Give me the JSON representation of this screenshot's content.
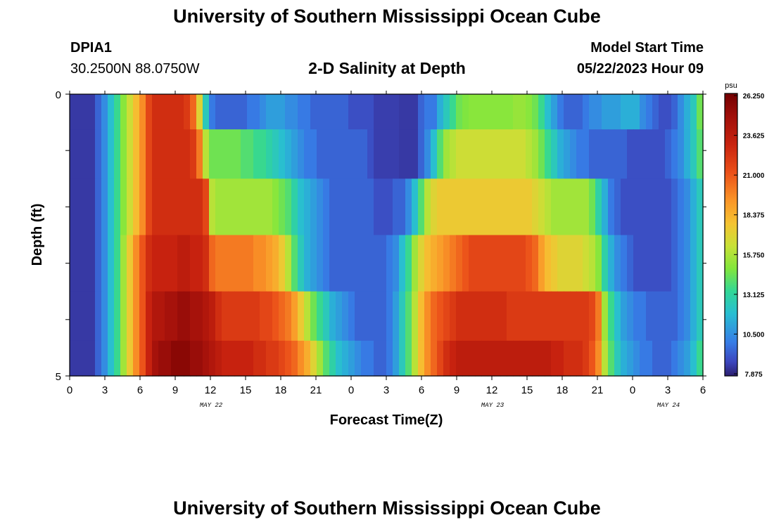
{
  "page_title": "University of Southern Mississippi Ocean Cube",
  "footer_title": "University of Southern Mississippi Ocean Cube",
  "station": {
    "id": "DPIA1",
    "coords": "30.2500N  88.0750W"
  },
  "plot_title": "2-D Salinity at Depth",
  "model": {
    "label": "Model Start Time",
    "value": "05/22/2023 Hour 09"
  },
  "chart_data": {
    "type": "heatmap",
    "title": "2-D Salinity at Depth",
    "xlabel": "Forecast Time(Z)",
    "ylabel": "Depth (ft)",
    "x_hours_from_start": [
      0,
      54
    ],
    "x_tick_labels": [
      "0",
      "3",
      "6",
      "9",
      "12",
      "15",
      "18",
      "21",
      "0",
      "3",
      "6",
      "9",
      "12",
      "15",
      "18",
      "21",
      "0",
      "3",
      "6"
    ],
    "date_labels": [
      {
        "text": "MAY 22",
        "hour": 12
      },
      {
        "text": "MAY 23",
        "hour": 36
      },
      {
        "text": "MAY 24",
        "hour": 51
      }
    ],
    "y_tick_labels": [
      "0",
      "5"
    ],
    "ylim": [
      0,
      5
    ],
    "depth_layers": [
      0.25,
      1.0,
      2.0,
      3.0,
      4.0,
      4.75
    ],
    "colorbar": {
      "unit": "psu",
      "min": 7.875,
      "max": 26.25,
      "tick_labels": [
        "26.250",
        "23.625",
        "21.000",
        "18.375",
        "15.750",
        "13.125",
        "10.500",
        "7.875"
      ]
    },
    "series": [
      {
        "name": "0.25 ft",
        "values": [
          8.5,
          8.5,
          8.5,
          8.5,
          9.5,
          10.5,
          12,
          13.5,
          15,
          16.5,
          18,
          19.5,
          21.5,
          22.5,
          22.5,
          22.5,
          22.5,
          22.5,
          22,
          20.5,
          17,
          12.5,
          10,
          9.5,
          9.5,
          9.5,
          9.5,
          9.5,
          10,
          10,
          10.5,
          11,
          11,
          11,
          10.5,
          10.5,
          10,
          10,
          9.5,
          9.5,
          9.5,
          9.5,
          9.5,
          9.5,
          9,
          9,
          9,
          9,
          8.6,
          8.6,
          8.6,
          8.6,
          8.5,
          8.5,
          8.5,
          9.5,
          10,
          10,
          11.5,
          12.5,
          13.5,
          14.5,
          14.8,
          15,
          15,
          15,
          15,
          15,
          15,
          15,
          15.3,
          15.3,
          15,
          14.5,
          13.5,
          12,
          11,
          10,
          9.5,
          9.5,
          9.5,
          10,
          10.5,
          10.5,
          11,
          11,
          11,
          11.5,
          11.5,
          11.5,
          10.5,
          10,
          9.5,
          9,
          9,
          9.5,
          10.5,
          11.5,
          12.5,
          14.5
        ]
      },
      {
        "name": "1 ft",
        "values": [
          8.5,
          8.5,
          8.5,
          8.5,
          9.5,
          10.5,
          12,
          13.5,
          15,
          16.5,
          18,
          19.5,
          21.5,
          22.5,
          22.5,
          22.5,
          22.5,
          22.5,
          22.5,
          22,
          20,
          16,
          14.5,
          14.5,
          14.5,
          14.5,
          14.5,
          14,
          14,
          13.5,
          13.5,
          13,
          12.5,
          12,
          11.5,
          11,
          10.5,
          10,
          10,
          9.5,
          9.5,
          9.5,
          9.5,
          9.5,
          9.5,
          9.5,
          9.5,
          9,
          8.6,
          8.6,
          8.6,
          8.6,
          8.5,
          8.5,
          8.5,
          9.5,
          10.5,
          12,
          14,
          15.5,
          16,
          16.5,
          16.5,
          16.5,
          16.5,
          16.5,
          16.5,
          16.5,
          16.5,
          16.5,
          16.5,
          16.5,
          16,
          15.5,
          14.5,
          13.5,
          12.5,
          11.5,
          11,
          10.5,
          10,
          10,
          9.5,
          9.5,
          9.5,
          9.5,
          9.5,
          9.5,
          9,
          9,
          9,
          9,
          9,
          9,
          9.5,
          10,
          10.5,
          11.5,
          12.5,
          14
        ]
      },
      {
        "name": "2 ft",
        "values": [
          8.5,
          8.5,
          8.5,
          8.5,
          9.5,
          10.5,
          12,
          13.5,
          15,
          16.5,
          18,
          19.5,
          21.5,
          22.5,
          22.5,
          22.5,
          22.5,
          22.5,
          22.5,
          22.5,
          22.5,
          21.5,
          16,
          15.5,
          15.5,
          15.5,
          15.5,
          15.5,
          15.5,
          15.5,
          15.5,
          15.5,
          15,
          14.5,
          14,
          13,
          12,
          11.5,
          11,
          10.5,
          10,
          9.5,
          9.5,
          9.5,
          9.5,
          9.5,
          9.5,
          9.5,
          9,
          9,
          9,
          9.5,
          9.5,
          10.5,
          12,
          14,
          16,
          17,
          17.5,
          17.5,
          17.5,
          17.5,
          17.5,
          17.5,
          17.5,
          17.5,
          17.5,
          17.5,
          17.5,
          17.5,
          17.5,
          17.5,
          17.5,
          17,
          16.5,
          16,
          15.5,
          15.5,
          15.5,
          15.5,
          15.5,
          15.5,
          14.5,
          13,
          11.5,
          10,
          9.5,
          9,
          9,
          9,
          9,
          9,
          9,
          9,
          9,
          9.5,
          10,
          10.5,
          11.5,
          12.5
        ]
      },
      {
        "name": "3 ft",
        "values": [
          8.5,
          8.5,
          8.5,
          8.5,
          9.5,
          10.5,
          12,
          13.5,
          15.5,
          17.5,
          19.5,
          21,
          22.5,
          23,
          23,
          23,
          23,
          23.5,
          23.5,
          23,
          23,
          22.5,
          20.5,
          20,
          20,
          20,
          20,
          20,
          20,
          19.5,
          19.5,
          19,
          18.5,
          17.5,
          16,
          14,
          12.5,
          11.5,
          11,
          10.5,
          10,
          9.5,
          9.5,
          9.5,
          9.5,
          9.5,
          9.5,
          9.5,
          9.5,
          9.5,
          10,
          10.5,
          12,
          13.5,
          15.5,
          17,
          18,
          18.5,
          19,
          19.5,
          20,
          20.5,
          21,
          21.5,
          21.5,
          21.5,
          21.5,
          21.5,
          21.5,
          21.5,
          21.5,
          21.5,
          21,
          20.5,
          19,
          18,
          17.5,
          17,
          17,
          17,
          17,
          16.5,
          16,
          15,
          13,
          11.5,
          10.5,
          10,
          9.5,
          9,
          9,
          9,
          9,
          9,
          9,
          9.5,
          10,
          10.5,
          11.5,
          12.5
        ]
      },
      {
        "name": "4 ft",
        "values": [
          8.5,
          8.5,
          8.5,
          8.5,
          9.5,
          10.5,
          12,
          13.5,
          15.5,
          17.5,
          19.5,
          21,
          23,
          24,
          24,
          24.5,
          24.5,
          25,
          25,
          24.5,
          24.5,
          24,
          23.5,
          22.5,
          22,
          22,
          22,
          22,
          22,
          22,
          21.5,
          21.5,
          21,
          20.5,
          20,
          19,
          17.5,
          16,
          14.5,
          13.5,
          12.5,
          11.5,
          11,
          10.5,
          10,
          9.5,
          9.5,
          9.5,
          9.5,
          9.5,
          10,
          11,
          12.5,
          14,
          16,
          18,
          19.5,
          20.5,
          21,
          21.5,
          22,
          22.5,
          22.5,
          22.5,
          22.5,
          22.5,
          22.5,
          22.5,
          22.5,
          22,
          22,
          22,
          22,
          22,
          22,
          22,
          22,
          22,
          22,
          22,
          22,
          22,
          21.5,
          20,
          15.5,
          13.5,
          12,
          11,
          10.5,
          10,
          10,
          9.5,
          9.5,
          9.5,
          9.5,
          9.5,
          10,
          10.5,
          11.5,
          12.5
        ]
      },
      {
        "name": "4.75 ft",
        "values": [
          8.5,
          8.5,
          8.5,
          8.5,
          9.5,
          10.5,
          12,
          13.5,
          15.5,
          17.5,
          19.5,
          21,
          23,
          24.5,
          25,
          25,
          25.5,
          25.5,
          25.5,
          25,
          25,
          24.5,
          24,
          23.5,
          23,
          23,
          23,
          23,
          23,
          22.5,
          22.5,
          22,
          22,
          21.5,
          21,
          20.5,
          19.5,
          18.5,
          17,
          15.5,
          14,
          13,
          12,
          11.5,
          11,
          10.5,
          10,
          10,
          9.5,
          9.5,
          10,
          11,
          12.5,
          14,
          16,
          18,
          19.5,
          20.5,
          21.5,
          22.5,
          23,
          23.5,
          23.5,
          23.5,
          23.5,
          23.5,
          23.5,
          23.5,
          23.5,
          23.5,
          23.5,
          23.5,
          23.5,
          23.5,
          23.5,
          23.5,
          23,
          23,
          22.5,
          22.5,
          22.5,
          22,
          21,
          19.5,
          16,
          14,
          12.5,
          11.5,
          11,
          10.5,
          10,
          10,
          9.5,
          9.5,
          9.5,
          10,
          10.5,
          11,
          12,
          13.5
        ]
      }
    ]
  }
}
